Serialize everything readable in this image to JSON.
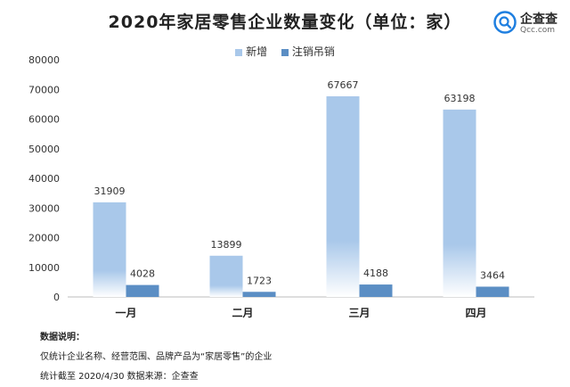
{
  "title": "2020年家居零售企业数量变化（单位：家）",
  "brand": {
    "name": "企查查",
    "url": "Qcc.com",
    "color": "#1f7fe0"
  },
  "legend": [
    {
      "label": "新增",
      "color": "#a9c8ea"
    },
    {
      "label": "注销吊销",
      "color": "#5b8ec4"
    }
  ],
  "chart_data": {
    "type": "bar",
    "title": "2020年家居零售企业数量变化（单位：家）",
    "categories": [
      "一月",
      "二月",
      "三月",
      "四月"
    ],
    "series": [
      {
        "name": "新增",
        "values": [
          31909,
          13899,
          67667,
          63198
        ],
        "color": "#a9c8ea"
      },
      {
        "name": "注销吊销",
        "values": [
          4028,
          1723,
          4188,
          3464
        ],
        "color": "#5b8ec4"
      }
    ],
    "ylim": [
      0,
      80000
    ],
    "yticks": [
      0,
      10000,
      20000,
      30000,
      40000,
      50000,
      60000,
      70000,
      80000
    ],
    "grid": false,
    "legend_position": "top-center"
  },
  "notes": {
    "heading": "数据说明：",
    "line1": "仅统计企业名称、经营范围、品牌产品为“家居零售”的企业",
    "line2": "统计截至 2020/4/30    数据来源：企查查"
  }
}
